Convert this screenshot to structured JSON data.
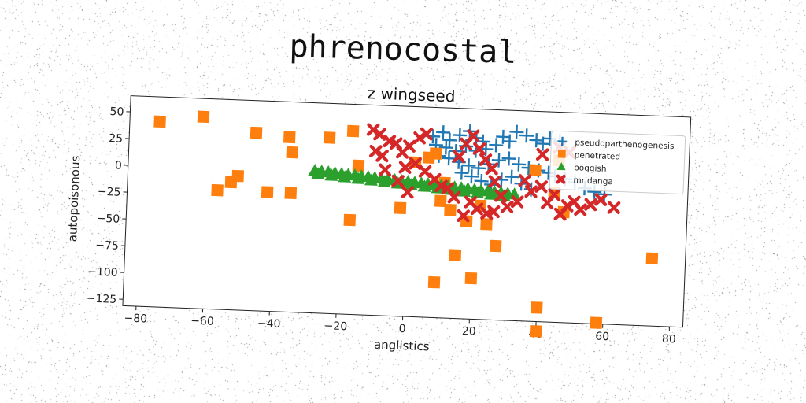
{
  "suptitle": "phrenocostal",
  "chart_data": {
    "type": "scatter",
    "title": "z wingseed",
    "xlabel": "anglistics",
    "ylabel": "autopoisonous",
    "xlim": [
      -84,
      84
    ],
    "ylim": [
      -131,
      65
    ],
    "xticks": [
      -80,
      -60,
      -40,
      -20,
      0,
      20,
      40,
      60,
      80
    ],
    "yticks": [
      50,
      25,
      0,
      -25,
      -50,
      -75,
      -100,
      -125
    ],
    "tick_labels": {
      "x": [
        "−80",
        "−60",
        "−40",
        "−20",
        "0",
        "20",
        "40",
        "60",
        "80"
      ],
      "y": [
        "50",
        "25",
        "0",
        "−25",
        "−50",
        "−75",
        "−100",
        "−125"
      ]
    },
    "grid": false,
    "legend_position": "upper right",
    "series": [
      {
        "name": "pseudoparthenogenesis",
        "marker": "plus",
        "color": "#1f77b4",
        "points": [
          [
            7,
            38
          ],
          [
            10,
            42
          ],
          [
            12,
            35
          ],
          [
            15,
            40
          ],
          [
            18,
            44
          ],
          [
            20,
            38
          ],
          [
            22,
            35
          ],
          [
            8,
            30
          ],
          [
            11,
            28
          ],
          [
            14,
            25
          ],
          [
            17,
            30
          ],
          [
            20,
            26
          ],
          [
            23,
            28
          ],
          [
            26,
            32
          ],
          [
            28,
            40
          ],
          [
            30,
            36
          ],
          [
            32,
            45
          ],
          [
            35,
            42
          ],
          [
            38,
            38
          ],
          [
            40,
            35
          ],
          [
            42,
            40
          ],
          [
            45,
            38
          ],
          [
            9,
            20
          ],
          [
            12,
            18
          ],
          [
            15,
            15
          ],
          [
            18,
            12
          ],
          [
            21,
            10
          ],
          [
            24,
            14
          ],
          [
            27,
            18
          ],
          [
            30,
            20
          ],
          [
            33,
            15
          ],
          [
            36,
            12
          ],
          [
            39,
            10
          ],
          [
            42,
            8
          ],
          [
            44,
            5
          ],
          [
            47,
            3
          ],
          [
            50,
            0
          ],
          [
            53,
            -5
          ],
          [
            56,
            -8
          ],
          [
            59,
            -10
          ],
          [
            16,
            5
          ],
          [
            19,
            2
          ],
          [
            22,
            -2
          ],
          [
            25,
            -5
          ],
          [
            28,
            0
          ],
          [
            31,
            3
          ],
          [
            34,
            -3
          ],
          [
            37,
            -8
          ]
        ]
      },
      {
        "name": "penetrated",
        "marker": "square",
        "color": "#ff7f0e",
        "points": [
          [
            -75,
            42
          ],
          [
            -62,
            48
          ],
          [
            -46,
            35
          ],
          [
            -36,
            32
          ],
          [
            -35,
            18
          ],
          [
            -24,
            33
          ],
          [
            -17,
            40
          ],
          [
            -15,
            8
          ],
          [
            -57,
            -20
          ],
          [
            -53,
            -12
          ],
          [
            -51,
            -6
          ],
          [
            -42,
            -20
          ],
          [
            -35,
            -20
          ],
          [
            -17,
            -43
          ],
          [
            -2,
            -30
          ],
          [
            2,
            13
          ],
          [
            6,
            18
          ],
          [
            8,
            22
          ],
          [
            10,
            -22
          ],
          [
            11,
            -5
          ],
          [
            13,
            -30
          ],
          [
            15,
            -72
          ],
          [
            18,
            -40
          ],
          [
            20,
            -93
          ],
          [
            22,
            -25
          ],
          [
            24,
            -42
          ],
          [
            27,
            -62
          ],
          [
            9,
            -98
          ],
          [
            38,
            10
          ],
          [
            45,
            20
          ],
          [
            47,
            -28
          ],
          [
            40,
            -118
          ],
          [
            40,
            -140
          ],
          [
            58,
            -130
          ],
          [
            74,
            -68
          ],
          [
            44,
            -10
          ]
        ]
      },
      {
        "name": "boggish",
        "marker": "triangle",
        "color": "#2ca02c",
        "points": [
          [
            -28,
            2
          ],
          [
            -26,
            1.5
          ],
          [
            -24,
            1
          ],
          [
            -22,
            0.5
          ],
          [
            -20,
            0
          ],
          [
            -18,
            -0.5
          ],
          [
            -16,
            -1
          ],
          [
            -14,
            -1.5
          ],
          [
            -12,
            -2
          ],
          [
            -10,
            -2.5
          ],
          [
            -8,
            -3
          ],
          [
            -6,
            -3.5
          ],
          [
            -4,
            -4
          ],
          [
            -2,
            -4.5
          ],
          [
            0,
            -5
          ],
          [
            2,
            -5.5
          ],
          [
            4,
            -6
          ],
          [
            6,
            -6.5
          ],
          [
            8,
            -7
          ],
          [
            10,
            -7.5
          ],
          [
            12,
            -8
          ],
          [
            14,
            -8.5
          ],
          [
            16,
            -9
          ],
          [
            18,
            -9.5
          ],
          [
            20,
            -10
          ],
          [
            22,
            -10.5
          ],
          [
            24,
            -11
          ],
          [
            26,
            -11.5
          ],
          [
            28,
            -12
          ],
          [
            30,
            -12.5
          ],
          [
            32,
            -13
          ],
          [
            -27,
            -1
          ],
          [
            -23,
            -2
          ],
          [
            -19,
            -3
          ],
          [
            -15,
            -4
          ],
          [
            -11,
            -5
          ],
          [
            -7,
            -6
          ],
          [
            -3,
            -7
          ],
          [
            1,
            -8
          ],
          [
            5,
            -9
          ],
          [
            9,
            -10
          ],
          [
            13,
            -11
          ],
          [
            17,
            -12
          ],
          [
            21,
            -13
          ],
          [
            25,
            -14
          ],
          [
            29,
            -15
          ]
        ]
      },
      {
        "name": "mridanga",
        "marker": "x",
        "color": "#d62728",
        "points": [
          [
            -11,
            42
          ],
          [
            -9,
            38
          ],
          [
            -6,
            32
          ],
          [
            -10,
            22
          ],
          [
            -8,
            18
          ],
          [
            -4,
            30
          ],
          [
            -2,
            22
          ],
          [
            0,
            28
          ],
          [
            3,
            36
          ],
          [
            5,
            40
          ],
          [
            -1,
            8
          ],
          [
            2,
            12
          ],
          [
            5,
            5
          ],
          [
            8,
            -2
          ],
          [
            10,
            -8
          ],
          [
            -7,
            5
          ],
          [
            -3,
            -5
          ],
          [
            0,
            -15
          ],
          [
            12,
            -10
          ],
          [
            14,
            -18
          ],
          [
            15,
            20
          ],
          [
            17,
            32
          ],
          [
            19,
            40
          ],
          [
            21,
            28
          ],
          [
            23,
            18
          ],
          [
            25,
            10
          ],
          [
            26,
            -2
          ],
          [
            28,
            -15
          ],
          [
            19,
            -22
          ],
          [
            21,
            -28
          ],
          [
            24,
            -32
          ],
          [
            17,
            -35
          ],
          [
            35,
            0
          ],
          [
            37,
            -10
          ],
          [
            40,
            -5
          ],
          [
            42,
            -20
          ],
          [
            44,
            -12
          ],
          [
            46,
            -30
          ],
          [
            48,
            -22
          ],
          [
            50,
            -18
          ],
          [
            52,
            -25
          ],
          [
            55,
            -20
          ],
          [
            58,
            -15
          ],
          [
            62,
            -22
          ],
          [
            40,
            25
          ],
          [
            45,
            32
          ],
          [
            48,
            28
          ],
          [
            30,
            -25
          ],
          [
            33,
            -20
          ],
          [
            26,
            -30
          ]
        ]
      }
    ]
  }
}
